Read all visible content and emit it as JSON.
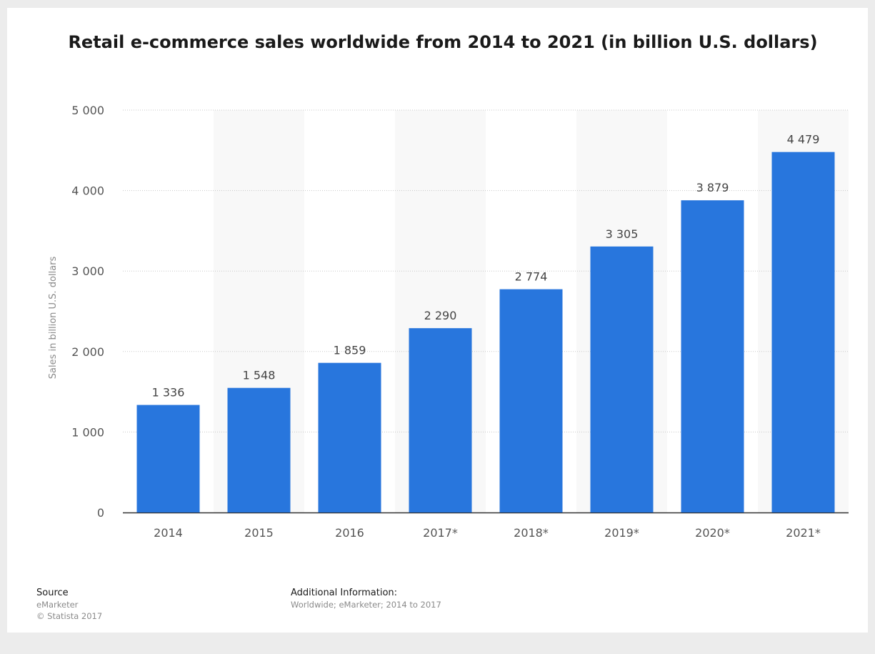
{
  "chart_data": {
    "type": "bar",
    "title": "Retail e-commerce sales worldwide from 2014 to 2021 (in billion U.S. dollars)",
    "ylabel": "Sales in billion U.S. dollars",
    "xlabel": "",
    "categories": [
      "2014",
      "2015",
      "2016",
      "2017*",
      "2018*",
      "2019*",
      "2020*",
      "2021*"
    ],
    "values": [
      1336,
      1548,
      1859,
      2290,
      2774,
      3305,
      3879,
      4479
    ],
    "value_labels": [
      "1 336",
      "1 548",
      "1 859",
      "2 290",
      "2 774",
      "3 305",
      "3 879",
      "4 479"
    ],
    "yticks": [
      0,
      1000,
      2000,
      3000,
      4000,
      5000
    ],
    "ytick_labels": [
      "0",
      "1 000",
      "2 000",
      "3 000",
      "4 000",
      "5 000"
    ],
    "ylim": [
      0,
      5000
    ],
    "grid": true,
    "colors": {
      "bar": "#2876dd",
      "alt_band": "#f8f8f8",
      "grid": "#c8c8c8",
      "axis": "#333333",
      "text": "#555555"
    }
  },
  "footer": {
    "source_heading": "Source",
    "source_lines": [
      "eMarketer",
      "© Statista 2017"
    ],
    "info_heading": "Additional Information:",
    "info_text": "Worldwide; eMarketer; 2014 to 2017"
  }
}
